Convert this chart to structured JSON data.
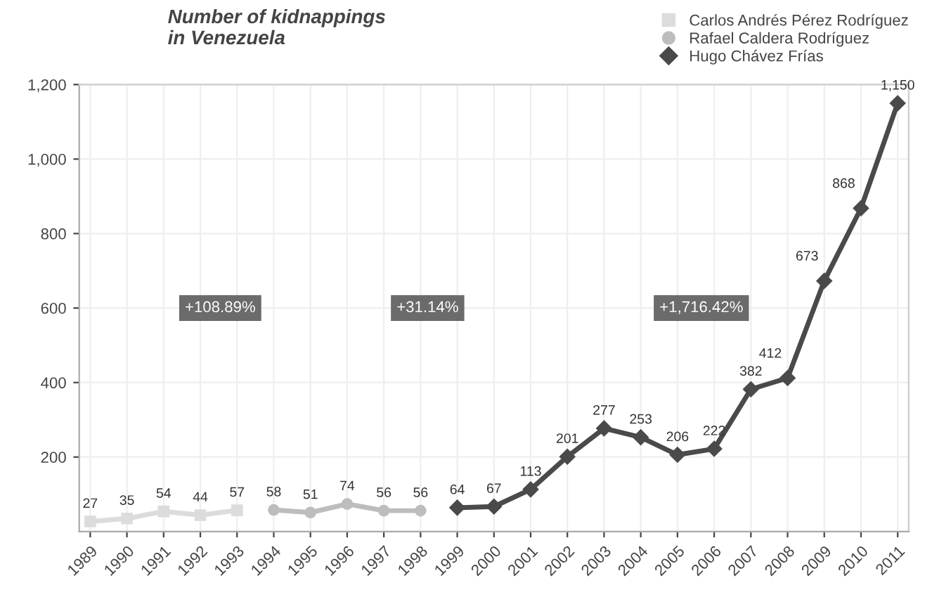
{
  "chart_data": {
    "type": "line",
    "title": "Number of kidnappings\nin Venezuela",
    "categories": [
      "1989",
      "1990",
      "1991",
      "1992",
      "1993",
      "1994",
      "1995",
      "1996",
      "1997",
      "1998",
      "1999",
      "2000",
      "2001",
      "2002",
      "2003",
      "2004",
      "2005",
      "2006",
      "2007",
      "2008",
      "2009",
      "2010",
      "2011"
    ],
    "series": [
      {
        "name": "Carlos Andrés Pérez Rodríguez",
        "color": "#dcdcdc",
        "marker": "square",
        "values": [
          27,
          35,
          54,
          44,
          57,
          null,
          null,
          null,
          null,
          null,
          null,
          null,
          null,
          null,
          null,
          null,
          null,
          null,
          null,
          null,
          null,
          null,
          null
        ]
      },
      {
        "name": "Rafael Caldera Rodríguez",
        "color": "#bdbdbd",
        "marker": "circle",
        "values": [
          null,
          null,
          null,
          null,
          null,
          58,
          51,
          74,
          56,
          56,
          null,
          null,
          null,
          null,
          null,
          null,
          null,
          null,
          null,
          null,
          null,
          null,
          null
        ]
      },
      {
        "name": "Hugo Chávez Frías",
        "color": "#4a4a4a",
        "marker": "diamond",
        "values": [
          null,
          null,
          null,
          null,
          null,
          null,
          null,
          null,
          null,
          null,
          64,
          67,
          113,
          201,
          277,
          253,
          206,
          222,
          382,
          412,
          673,
          868,
          1150
        ]
      }
    ],
    "value_labels": [
      "27",
      "35",
      "54",
      "44",
      "57",
      "58",
      "51",
      "74",
      "56",
      "56",
      "64",
      "67",
      "113",
      "201",
      "277",
      "253",
      "206",
      "222",
      "382",
      "412",
      "673",
      "868",
      "1,150"
    ],
    "annotations": [
      "+108.89%",
      "+31.14%",
      "+1,716.42%"
    ],
    "ylim": [
      0,
      1200
    ],
    "yticks": [
      {
        "value": 200,
        "label": "200"
      },
      {
        "value": 400,
        "label": "400"
      },
      {
        "value": 600,
        "label": "600"
      },
      {
        "value": 800,
        "label": "800"
      },
      {
        "value": 1000,
        "label": "1,000"
      },
      {
        "value": 1200,
        "label": "1,200"
      }
    ],
    "grid": true,
    "legend": "top right"
  }
}
